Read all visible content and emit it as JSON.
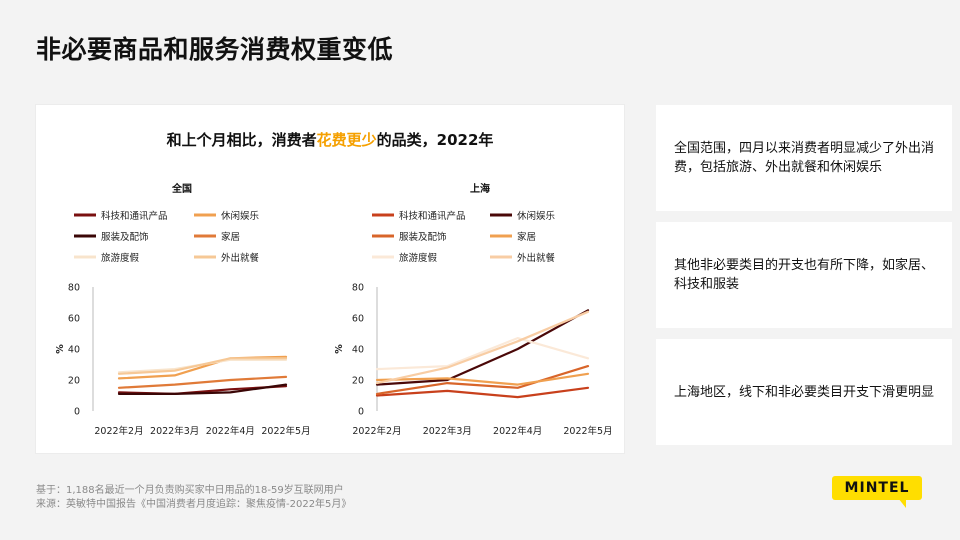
{
  "page": {
    "title": "非必要商品和服务消费权重变低",
    "chart_title_prefix": "和上个月相比，消费者",
    "chart_title_highlight": "花费更少",
    "chart_title_suffix": "的品类，2022年",
    "notes": [
      "全国范围，四月以来消费者明显减少了外出消费，包括旅游、外出就餐和休闲娱乐",
      "其他非必要类目的开支也有所下降，如家居、科技和服装",
      "上海地区，线下和非必要类目开支下滑更明显"
    ],
    "footer_line1": "基于：1,188名最近一个月负责购买家中日用品的18-59岁互联网用户",
    "footer_line2": "来源：英敏特中国报告《中国消费者月度追踪：聚焦疫情-2022年5月》",
    "logo": "MINTEL",
    "colors": {
      "highlight": "#f5a000",
      "logo_bg": "#ffde00",
      "background": "#f3f3f3"
    }
  },
  "chart_data": [
    {
      "type": "line",
      "title": "全国",
      "x": [
        "2022年2月",
        "2022年3月",
        "2022年4月",
        "2022年5月"
      ],
      "ylabel": "%",
      "ylim": [
        0,
        80
      ],
      "yticks": [
        0,
        20,
        40,
        60,
        80
      ],
      "legend_position": "top",
      "series": [
        {
          "name": "科技和通讯产品",
          "color": "#7a1010",
          "values": [
            12,
            11,
            14,
            16
          ]
        },
        {
          "name": "休闲娱乐",
          "color": "#f0a050",
          "values": [
            21,
            23,
            34,
            35
          ]
        },
        {
          "name": "服装及配饰",
          "color": "#3a0606",
          "values": [
            11,
            11,
            12,
            17
          ]
        },
        {
          "name": "家居",
          "color": "#e07a38",
          "values": [
            15,
            17,
            20,
            22
          ]
        },
        {
          "name": "旅游度假",
          "color": "#f8e4cc",
          "values": [
            25,
            27,
            33,
            33
          ]
        },
        {
          "name": "外出就餐",
          "color": "#f6c896",
          "values": [
            24,
            26,
            34,
            34
          ]
        }
      ]
    },
    {
      "type": "line",
      "title": "上海",
      "x": [
        "2022年2月",
        "2022年3月",
        "2022年4月",
        "2022年5月"
      ],
      "ylabel": "%",
      "ylim": [
        0,
        80
      ],
      "yticks": [
        0,
        20,
        40,
        60,
        80
      ],
      "legend_position": "top",
      "series": [
        {
          "name": "科技和通讯产品",
          "color": "#c8401c",
          "values": [
            10,
            13,
            9,
            15
          ]
        },
        {
          "name": "休闲娱乐",
          "color": "#4a0808",
          "values": [
            17,
            20,
            40,
            65
          ]
        },
        {
          "name": "服装及配饰",
          "color": "#d8652a",
          "values": [
            11,
            18,
            15,
            29
          ]
        },
        {
          "name": "家居",
          "color": "#f0a050",
          "values": [
            20,
            21,
            17,
            24
          ]
        },
        {
          "name": "旅游度假",
          "color": "#fbe9d8",
          "values": [
            27,
            29,
            47,
            34
          ]
        },
        {
          "name": "外出就餐",
          "color": "#f8cda4",
          "values": [
            18,
            28,
            45,
            64
          ]
        }
      ]
    }
  ]
}
